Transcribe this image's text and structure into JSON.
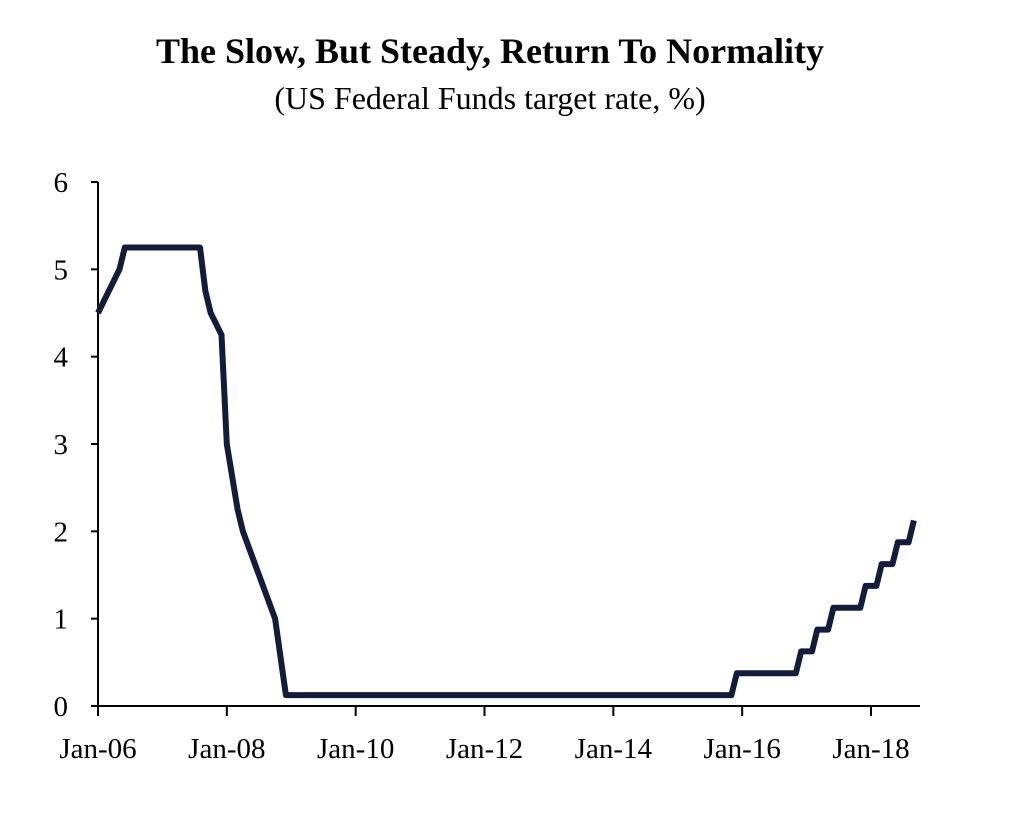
{
  "chart_data": {
    "type": "line",
    "title": "The Slow, But Steady, Return To Normality",
    "subtitle": "(US Federal Funds target rate, %)",
    "xlabel": "",
    "ylabel": "",
    "x_tick_labels": [
      "Jan-06",
      "Jan-08",
      "Jan-10",
      "Jan-12",
      "Jan-14",
      "Jan-16",
      "Jan-18"
    ],
    "y_tick_labels": [
      "0",
      "1",
      "2",
      "3",
      "4",
      "5",
      "6"
    ],
    "xlim": [
      "2006-01",
      "2018-09"
    ],
    "ylim": [
      0,
      6
    ],
    "grid": false,
    "line_color": "#141c3c",
    "series": [
      {
        "name": "",
        "x": [
          "2006-01",
          "2006-03",
          "2006-05",
          "2006-06",
          "2007-08",
          "2007-09",
          "2007-10",
          "2007-12",
          "2008-01",
          "2008-03",
          "2008-04",
          "2008-10",
          "2008-12",
          "2015-11",
          "2015-12",
          "2016-11",
          "2016-12",
          "2017-02",
          "2017-03",
          "2017-05",
          "2017-06",
          "2017-11",
          "2017-12",
          "2018-02",
          "2018-03",
          "2018-05",
          "2018-06",
          "2018-08",
          "2018-09"
        ],
        "values": [
          4.5,
          4.75,
          5.0,
          5.25,
          5.25,
          4.75,
          4.5,
          4.25,
          3.0,
          2.25,
          2.0,
          1.0,
          0.125,
          0.125,
          0.375,
          0.375,
          0.625,
          0.625,
          0.875,
          0.875,
          1.125,
          1.125,
          1.375,
          1.375,
          1.625,
          1.625,
          1.875,
          1.875,
          2.125
        ]
      }
    ]
  }
}
